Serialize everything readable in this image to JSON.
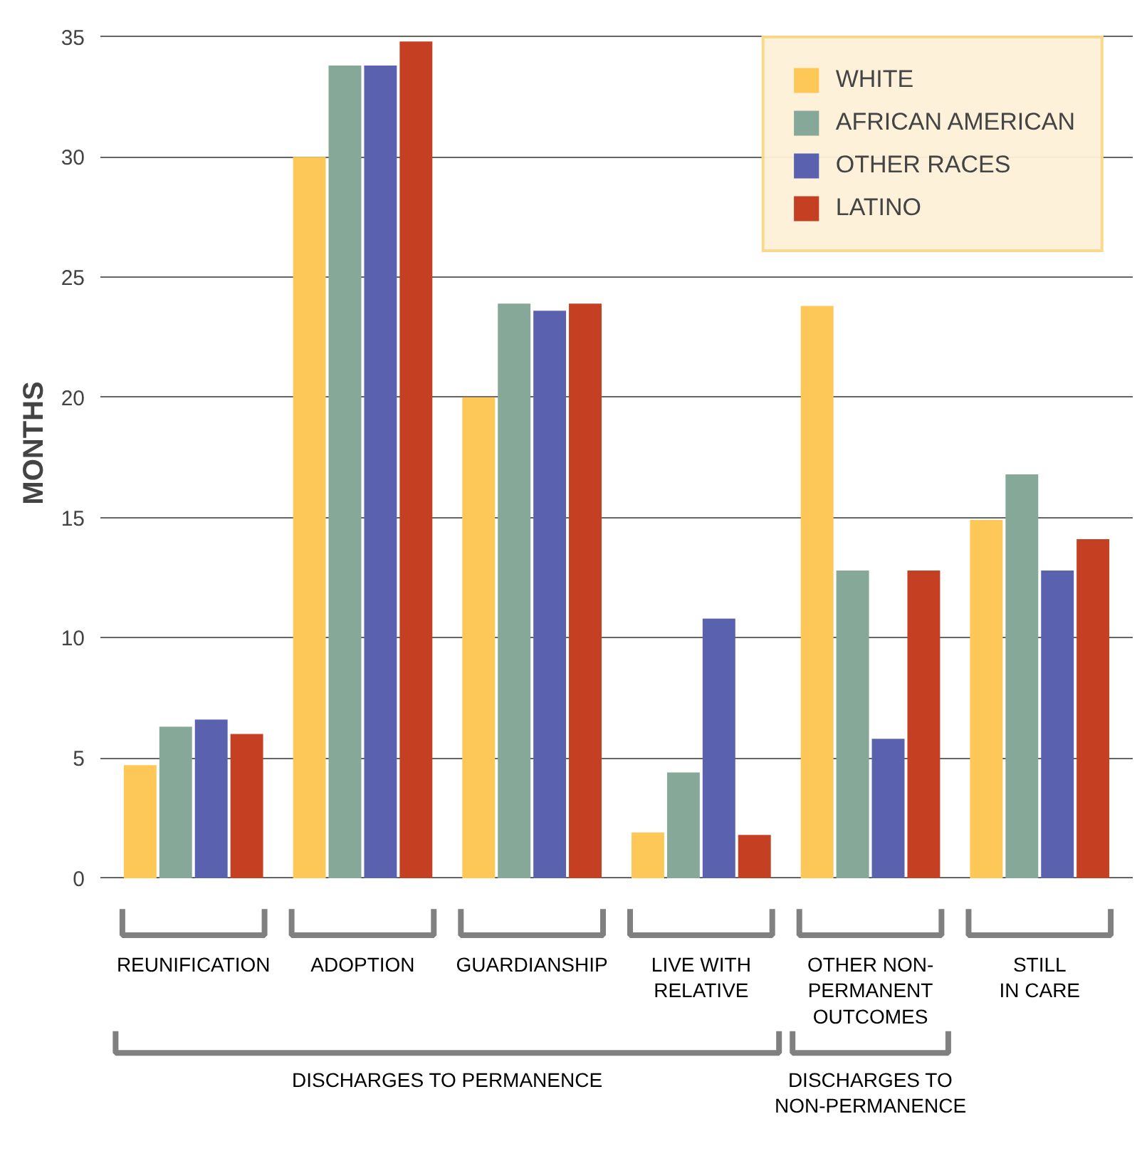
{
  "chart_data": {
    "type": "bar",
    "ylabel": "MONTHS",
    "categories": [
      "REUNIFICATION",
      "ADOPTION",
      "GUARDIANSHIP",
      "LIVE WITH\nRELATIVE",
      "OTHER NON-\nPERMANENT\nOUTCOMES",
      "STILL\nIN CARE"
    ],
    "series": [
      {
        "name": "WHITE",
        "color": "#fdc858",
        "values": [
          4.7,
          30.0,
          20.0,
          1.9,
          23.8,
          14.9
        ]
      },
      {
        "name": "AFRICAN AMERICAN",
        "color": "#85a898",
        "values": [
          6.3,
          33.8,
          23.9,
          4.4,
          12.8,
          16.8
        ]
      },
      {
        "name": "OTHER RACES",
        "color": "#5a62b0",
        "values": [
          6.6,
          33.8,
          23.6,
          10.8,
          5.8,
          12.8
        ]
      },
      {
        "name": "LATINO",
        "color": "#c53f22",
        "values": [
          6.0,
          34.8,
          23.9,
          1.8,
          12.8,
          14.1
        ]
      }
    ],
    "ylim": [
      0,
      35
    ],
    "yticks": [
      0,
      5,
      10,
      15,
      20,
      25,
      30,
      35
    ],
    "grid": "y",
    "legend": "top right",
    "annotations": [
      "DISCHARGES TO PERMANENCE",
      "DISCHARGES TO\nNON-PERMANENCE"
    ]
  }
}
